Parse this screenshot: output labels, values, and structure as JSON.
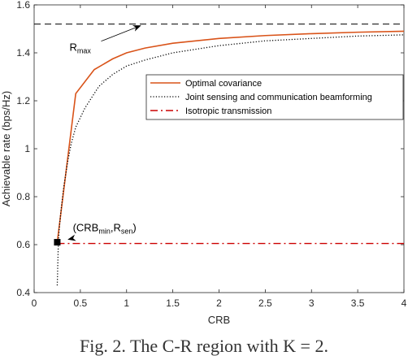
{
  "chart_data": {
    "type": "line",
    "xlabel": "CRB",
    "ylabel": "Achievable rate (bps/Hz)",
    "xlim": [
      0,
      4
    ],
    "ylim": [
      0.4,
      1.6
    ],
    "xticks": [
      "0",
      "0.5",
      "1",
      "1.5",
      "2",
      "2.5",
      "3",
      "3.5",
      "4"
    ],
    "yticks": [
      "0.4",
      "0.6",
      "0.8",
      "1",
      "1.2",
      "1.4",
      "1.6"
    ],
    "grid": false,
    "legend_position": "right",
    "series": [
      {
        "name": "Optimal covariance",
        "color": "#d95319",
        "style": "solid",
        "x": [
          0.25,
          0.45,
          0.65,
          0.85,
          1.0,
          1.2,
          1.5,
          2.0,
          2.5,
          3.0,
          3.5,
          4.0
        ],
        "y": [
          0.61,
          1.23,
          1.33,
          1.375,
          1.4,
          1.42,
          1.44,
          1.46,
          1.472,
          1.48,
          1.486,
          1.49
        ]
      },
      {
        "name": "Joint sensing and communication beamforming",
        "color": "#000000",
        "style": "dotted",
        "x": [
          0.25,
          0.26,
          0.27,
          0.29,
          0.32,
          0.36,
          0.4,
          0.45,
          0.55,
          0.7,
          0.85,
          1.0,
          1.2,
          1.5,
          2.0,
          2.5,
          3.0,
          3.5,
          4.0
        ],
        "y": [
          0.43,
          0.58,
          0.66,
          0.74,
          0.84,
          0.94,
          1.02,
          1.09,
          1.17,
          1.26,
          1.31,
          1.345,
          1.37,
          1.4,
          1.43,
          1.45,
          1.46,
          1.47,
          1.475
        ]
      },
      {
        "name": "Isotropic transmission",
        "color": "#cc0000",
        "style": "dashdot",
        "x": [
          0.25,
          4.0
        ],
        "y": [
          0.605,
          0.605
        ]
      },
      {
        "name": "",
        "color": "#000000",
        "style": "dashed",
        "x": [
          0.0,
          4.0
        ],
        "y": [
          1.52,
          1.52
        ]
      }
    ],
    "annotations": [
      {
        "main": "R",
        "sub": "max",
        "text": "Rmax",
        "x": 0.62,
        "y": 1.425,
        "arrow_to": [
          1.15,
          1.52
        ]
      },
      {
        "text": "(CRBmin,Rsen)",
        "parts": [
          "(CRB",
          "min",
          ",R",
          "sen",
          ")"
        ],
        "x": 0.77,
        "y": 0.66,
        "arrow_to": [
          0.3,
          0.605
        ]
      }
    ],
    "marker": {
      "shape": "square",
      "color": "#000000",
      "x": 0.25,
      "y": 0.61
    }
  },
  "caption": "Fig. 2. The C-R region with K = 2."
}
